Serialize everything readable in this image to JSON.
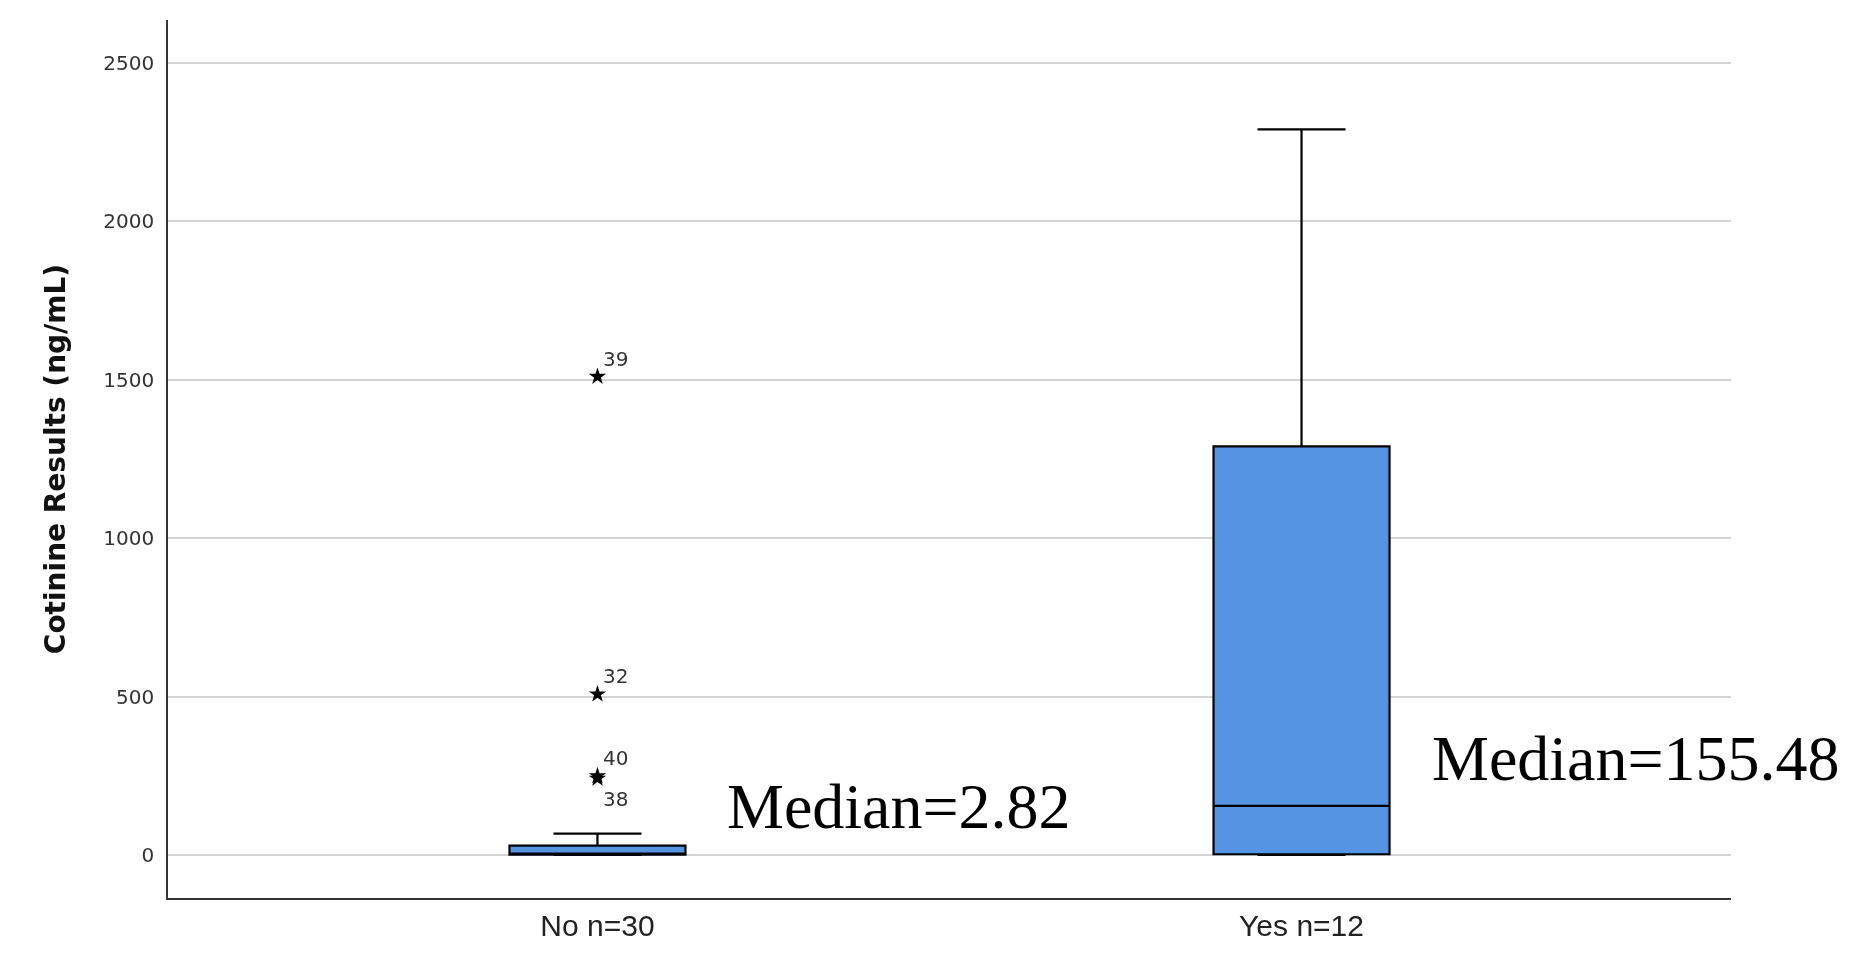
{
  "chart_data": {
    "type": "box",
    "ylabel": "Cotinine Results (ng/mL)",
    "categories": [
      "No n=30",
      "Yes n=12"
    ],
    "boxes": [
      {
        "low": 1,
        "q1": 2,
        "median": 2.82,
        "q3": 30,
        "high": 68,
        "outliers": [
          1510,
          508,
          250,
          242
        ]
      },
      {
        "low": 1,
        "q1": 3,
        "median": 155.48,
        "q3": 1290,
        "high": 2290
      }
    ],
    "color": "#5594e2",
    "ylim": [
      -135,
      2635
    ],
    "yticks": [
      0,
      500,
      1000,
      1500,
      2000,
      2500
    ],
    "grid": "y",
    "marker": "star",
    "annotations": [
      "39",
      "32",
      "40",
      "38",
      {
        "text": "Median=2.82",
        "x": "No n=30",
        "y": 2.82
      },
      {
        "text": "Median=155.48",
        "x": "Yes n=12",
        "y": 155.48
      }
    ]
  }
}
